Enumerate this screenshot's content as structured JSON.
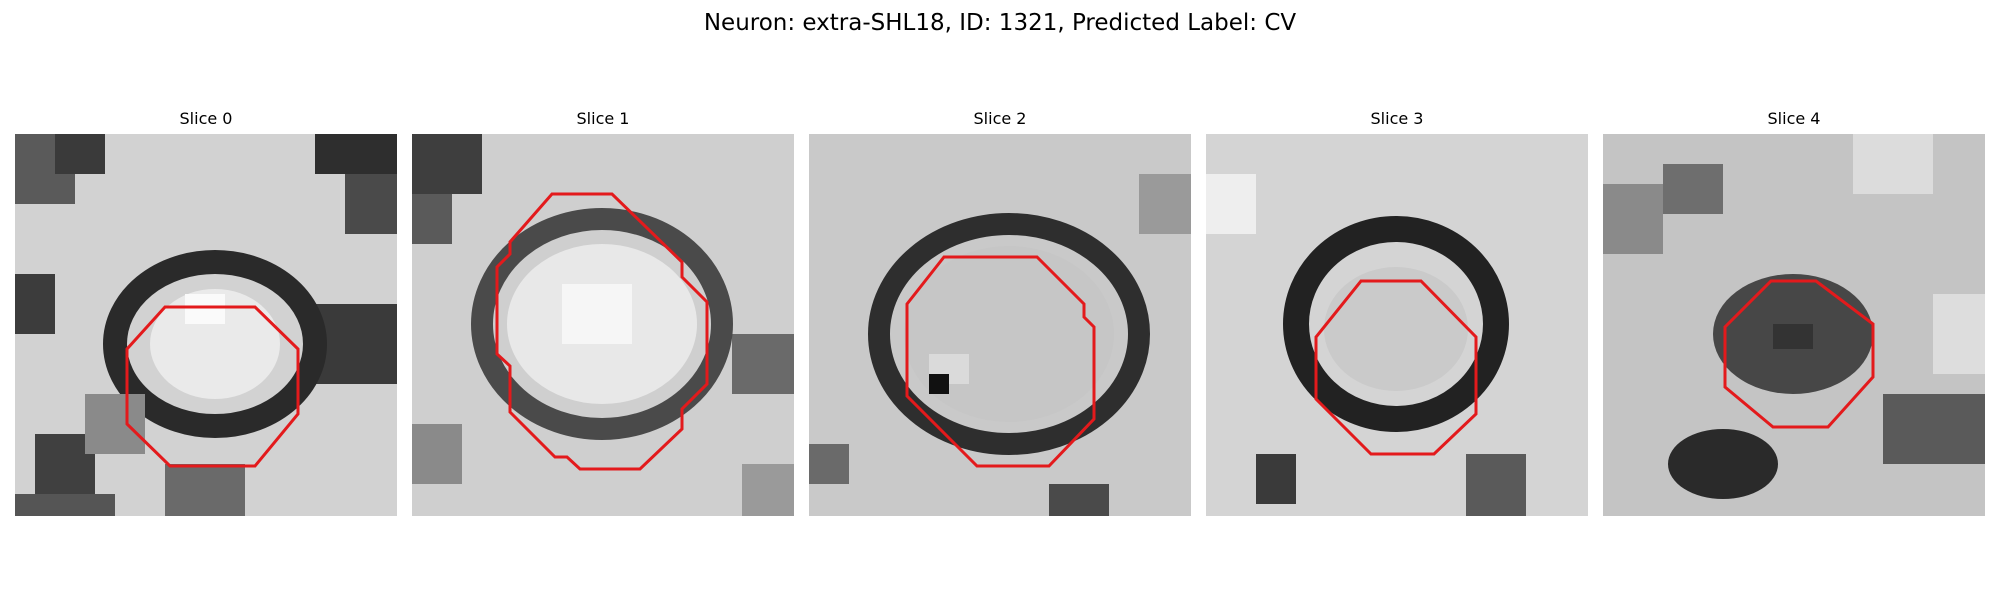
{
  "figure": {
    "title": "Neuron: extra-SHL18, ID: 1321, Predicted Label: CV"
  },
  "panels": [
    {
      "title": "Slice 0"
    },
    {
      "title": "Slice 1"
    },
    {
      "title": "Slice 2"
    },
    {
      "title": "Slice 3"
    },
    {
      "title": "Slice 4"
    }
  ],
  "colors": {
    "contour": "#e31a1c",
    "colormap": "gray"
  }
}
